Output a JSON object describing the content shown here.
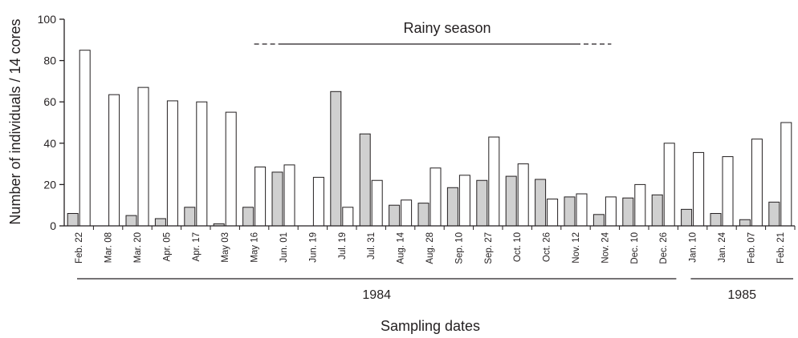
{
  "chart_data": {
    "type": "bar",
    "ylabel": "Number of individuals / 14 cores",
    "xlabel": "Sampling dates",
    "ylim": [
      0,
      100
    ],
    "yticks": [
      0,
      20,
      40,
      60,
      80,
      100
    ],
    "categories": [
      "Feb. 22",
      "Mar. 08",
      "Mar. 20",
      "Apr. 05",
      "Apr. 17",
      "May 03",
      "May 16",
      "Jun. 01",
      "Jun. 19",
      "Jul. 19",
      "Jul. 31",
      "Aug. 14",
      "Aug. 28",
      "Sep. 10",
      "Sep. 27",
      "Oct. 10",
      "Oct. 26",
      "Nov. 12",
      "Nov. 24",
      "Dec. 10",
      "Dec. 26",
      "Jan. 10",
      "Jan. 24",
      "Feb. 07",
      "Feb. 21"
    ],
    "series": [
      {
        "values": [
          6,
          0,
          5,
          3.5,
          9,
          1,
          9,
          26,
          0,
          65,
          44.5,
          10,
          11,
          18.5,
          22,
          24,
          22.5,
          14,
          5.5,
          13.5,
          15,
          8,
          6,
          3,
          11.5
        ],
        "color": "#d0d0d0"
      },
      {
        "values": [
          85,
          63.5,
          67,
          60.5,
          60,
          55,
          28.5,
          29.5,
          23.5,
          9,
          22,
          12.5,
          28,
          24.5,
          43,
          30,
          13,
          15.5,
          14,
          20,
          40,
          35.5,
          33.5,
          42,
          50
        ],
        "color": "#ffffff"
      }
    ],
    "years": [
      {
        "label": "1984",
        "from": "Feb. 22",
        "to": "Dec. 26"
      },
      {
        "label": "1985",
        "from": "Jan. 10",
        "to": "Feb. 21"
      }
    ],
    "annotation": {
      "label": "Rainy season",
      "solid_from": "Jun. 01",
      "solid_to": "Nov. 12",
      "dashed_from": "May 16",
      "dashed_to": "Nov. 24"
    },
    "grid": false,
    "legend": "none"
  }
}
